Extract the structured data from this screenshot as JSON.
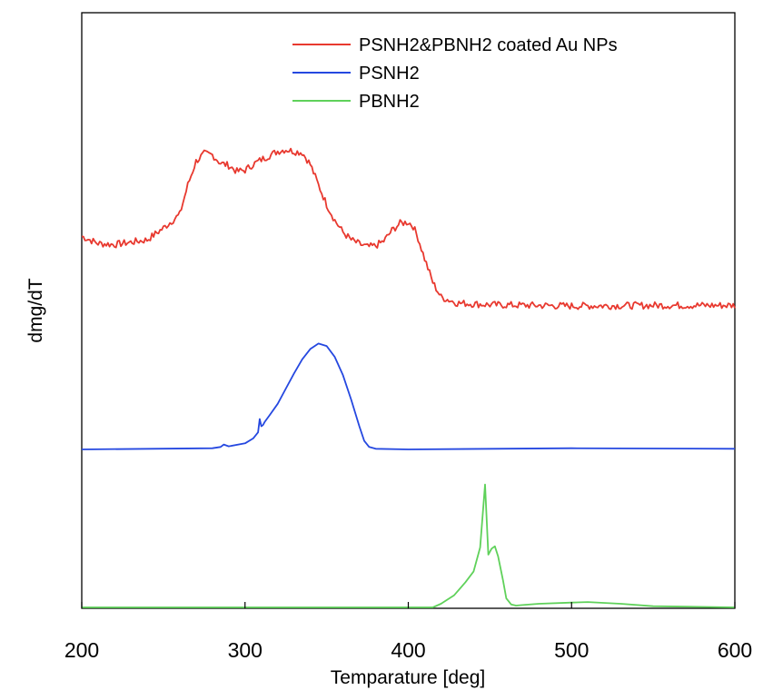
{
  "chart_data": {
    "type": "line",
    "xlabel": "Temparature [deg]",
    "ylabel": "dmg/dT",
    "xlim": [
      200,
      600
    ],
    "xticks": [
      200,
      300,
      400,
      500,
      600
    ],
    "yticks_shown": false,
    "grid": false,
    "legend_position": "top-right",
    "series": [
      {
        "name": "PSNH2&PBNH2 coated Au NPs",
        "color": "#e8392f",
        "noise": 0.06,
        "x": [
          200,
          210,
          220,
          230,
          240,
          250,
          260,
          265,
          270,
          275,
          280,
          285,
          290,
          295,
          300,
          305,
          310,
          315,
          320,
          325,
          330,
          335,
          340,
          345,
          350,
          355,
          360,
          365,
          370,
          375,
          380,
          385,
          390,
          395,
          400,
          403,
          406,
          410,
          415,
          420,
          430,
          450,
          500,
          550,
          600
        ],
        "values": [
          2.18,
          2.06,
          2.04,
          2.08,
          2.12,
          2.32,
          2.55,
          3.05,
          3.45,
          3.58,
          3.56,
          3.42,
          3.38,
          3.28,
          3.3,
          3.4,
          3.48,
          3.55,
          3.62,
          3.65,
          3.62,
          3.6,
          3.4,
          3.05,
          2.72,
          2.45,
          2.25,
          2.12,
          2.05,
          2.0,
          2.02,
          2.1,
          2.28,
          2.4,
          2.42,
          2.35,
          2.15,
          1.8,
          1.4,
          1.15,
          1.05,
          1.02,
          1.0,
          1.01,
          1.01
        ]
      },
      {
        "name": "PSNH2",
        "color": "#2548e0",
        "noise": 0.0,
        "x": [
          200,
          280,
          285,
          287,
          290,
          300,
          305,
          308,
          309,
          310,
          311,
          312,
          315,
          320,
          325,
          330,
          335,
          340,
          345,
          350,
          355,
          360,
          365,
          370,
          373,
          376,
          380,
          400,
          500,
          600
        ],
        "values": [
          0.0,
          0.02,
          0.04,
          0.08,
          0.05,
          0.1,
          0.18,
          0.28,
          0.5,
          0.38,
          0.4,
          0.45,
          0.56,
          0.75,
          1.0,
          1.25,
          1.48,
          1.65,
          1.74,
          1.7,
          1.52,
          1.22,
          0.82,
          0.38,
          0.14,
          0.04,
          0.01,
          0.0,
          0.02,
          0.01
        ]
      },
      {
        "name": "PBNH2",
        "color": "#5fd15a",
        "noise": 0.0,
        "x": [
          200,
          415,
          420,
          428,
          435,
          440,
          444,
          447,
          449,
          451,
          453,
          455,
          458,
          460,
          463,
          466,
          470,
          480,
          500,
          510,
          530,
          550,
          600
        ],
        "values": [
          0.0,
          0.0,
          0.06,
          0.2,
          0.42,
          0.6,
          1.0,
          2.05,
          0.88,
          0.98,
          1.02,
          0.85,
          0.45,
          0.15,
          0.05,
          0.03,
          0.04,
          0.06,
          0.08,
          0.09,
          0.06,
          0.02,
          0.0
        ]
      }
    ]
  }
}
